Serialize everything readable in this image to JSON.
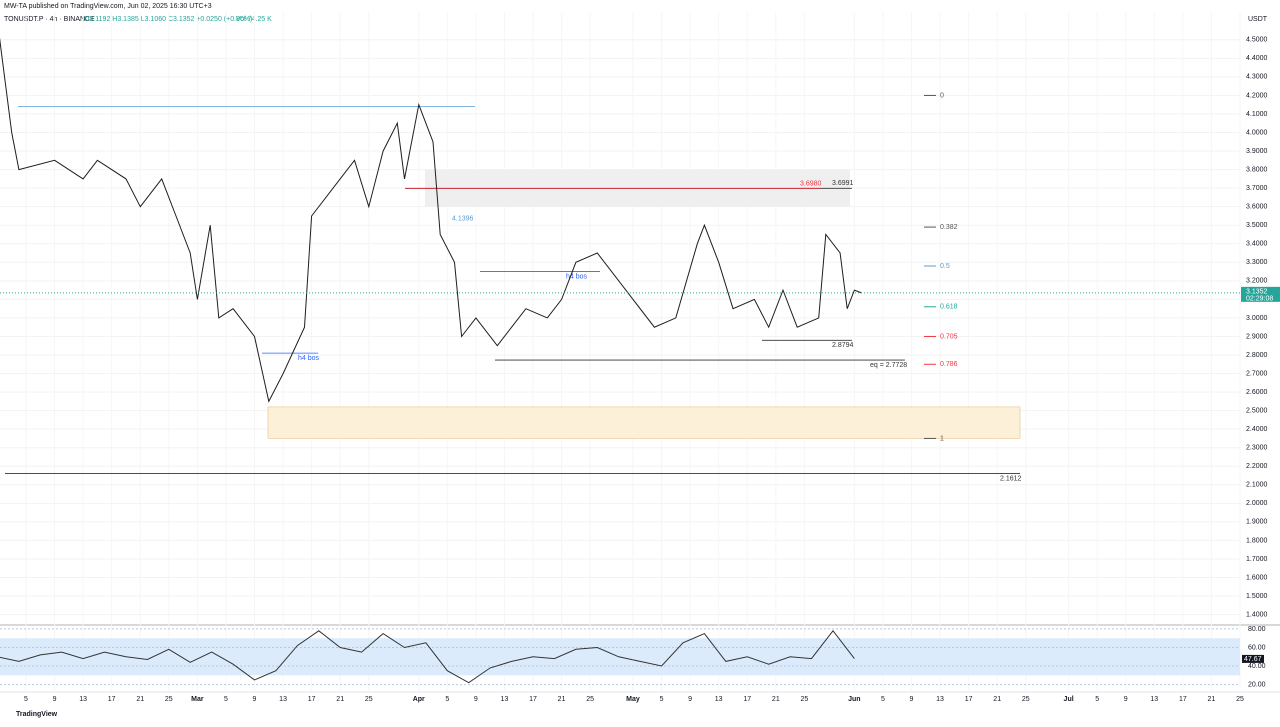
{
  "header": {
    "author": "MW-TA published on TradingView.com, Jun 02, 2025 16:30 UTC+3",
    "symbol": "TONUSDT.P · 4h · BINANCE",
    "ohlc": "O3.1192 H3.1385 L3.1060 C3.1352 +0.0250 (+0.80%)",
    "volume": "Vol 74.25 K"
  },
  "footer": {
    "brand": "TradingView"
  },
  "chart_data": [
    {
      "type": "line",
      "currency": "USDT",
      "color": "#1e1e1e",
      "x": [
        0,
        2,
        3,
        8,
        12,
        14,
        18,
        20,
        23,
        25,
        27,
        28,
        29.8,
        31,
        33,
        36,
        38,
        40,
        43,
        44,
        47,
        50,
        52,
        54,
        56,
        57,
        59,
        61,
        62,
        64,
        65,
        67,
        70,
        72,
        74,
        77,
        79,
        81,
        84,
        87,
        89,
        92,
        95,
        98,
        99,
        101,
        103,
        106,
        108,
        110,
        112,
        115,
        116,
        118,
        119,
        120,
        121
      ],
      "values": [
        4.6,
        4.0,
        3.8,
        3.85,
        3.75,
        3.85,
        3.75,
        3.6,
        3.75,
        3.55,
        3.35,
        3.1,
        3.5,
        3.0,
        3.05,
        2.9,
        2.55,
        2.7,
        2.95,
        3.55,
        3.7,
        3.85,
        3.6,
        3.9,
        4.05,
        3.75,
        4.15,
        3.95,
        3.45,
        3.3,
        2.9,
        3.0,
        2.85,
        2.95,
        3.05,
        3.0,
        3.1,
        3.3,
        3.35,
        3.2,
        3.1,
        2.95,
        3.0,
        3.4,
        3.5,
        3.3,
        3.05,
        3.1,
        2.95,
        3.15,
        2.95,
        3.0,
        3.45,
        3.35,
        3.05,
        3.15,
        3.1352
      ],
      "xlim": [
        0.36,
        174.0
      ],
      "ylim": [
        1.36,
        4.65
      ],
      "yticks": [
        {
          "value": 1.4,
          "label": "1.4000"
        },
        {
          "value": 1.5,
          "label": "1.5000"
        },
        {
          "value": 1.6,
          "label": "1.6000"
        },
        {
          "value": 1.7,
          "label": "1.7000"
        },
        {
          "value": 1.8,
          "label": "1.8000"
        },
        {
          "value": 1.9,
          "label": "1.9000"
        },
        {
          "value": 2.0,
          "label": "2.0000"
        },
        {
          "value": 2.1,
          "label": "2.1000"
        },
        {
          "value": 2.2,
          "label": "2.2000"
        },
        {
          "value": 2.3,
          "label": "2.3000"
        },
        {
          "value": 2.4,
          "label": "2.4000"
        },
        {
          "value": 2.5,
          "label": "2.5000"
        },
        {
          "value": 2.6,
          "label": "2.6000"
        },
        {
          "value": 2.7,
          "label": "2.7000"
        },
        {
          "value": 2.8,
          "label": "2.8000"
        },
        {
          "value": 2.9,
          "label": "2.9000"
        },
        {
          "value": 3.0,
          "label": "3.0000"
        },
        {
          "value": 3.1,
          "label": "3.1000"
        },
        {
          "value": 3.2,
          "label": "3.2000"
        },
        {
          "value": 3.3,
          "label": "3.3000"
        },
        {
          "value": 3.4,
          "label": "3.4000"
        },
        {
          "value": 3.5,
          "label": "3.5000"
        },
        {
          "value": 3.6,
          "label": "3.6000"
        },
        {
          "value": 3.7,
          "label": "3.7000"
        },
        {
          "value": 3.8,
          "label": "3.8000"
        },
        {
          "value": 3.9,
          "label": "3.9000"
        },
        {
          "value": 4.0,
          "label": "4.0000"
        },
        {
          "value": 4.1,
          "label": "4.1000"
        },
        {
          "value": 4.2,
          "label": "4.2000"
        },
        {
          "value": 4.3,
          "label": "4.3000"
        },
        {
          "value": 4.4,
          "label": "4.4000"
        },
        {
          "value": 4.5,
          "label": "4.5000"
        }
      ],
      "xticks": [
        {
          "value": 4,
          "label": "5"
        },
        {
          "value": 8,
          "label": "9"
        },
        {
          "value": 12,
          "label": "13"
        },
        {
          "value": 16,
          "label": "17"
        },
        {
          "value": 20,
          "label": "21"
        },
        {
          "value": 24,
          "label": "25"
        },
        {
          "value": 28,
          "label": "Mar"
        },
        {
          "value": 32,
          "label": "5"
        },
        {
          "value": 36,
          "label": "9"
        },
        {
          "value": 40,
          "label": "13"
        },
        {
          "value": 44,
          "label": "17"
        },
        {
          "value": 48,
          "label": "21"
        },
        {
          "value": 52,
          "label": "25"
        },
        {
          "value": 59,
          "label": "Apr"
        },
        {
          "value": 63,
          "label": "5"
        },
        {
          "value": 67,
          "label": "9"
        },
        {
          "value": 71,
          "label": "13"
        },
        {
          "value": 75,
          "label": "17"
        },
        {
          "value": 79,
          "label": "21"
        },
        {
          "value": 83,
          "label": "25"
        },
        {
          "value": 89,
          "label": "May"
        },
        {
          "value": 93,
          "label": "5"
        },
        {
          "value": 97,
          "label": "9"
        },
        {
          "value": 101,
          "label": "13"
        },
        {
          "value": 105,
          "label": "17"
        },
        {
          "value": 109,
          "label": "21"
        },
        {
          "value": 113,
          "label": "25"
        },
        {
          "value": 120,
          "label": "Jun"
        },
        {
          "value": 124,
          "label": "5"
        },
        {
          "value": 128,
          "label": "9"
        },
        {
          "value": 132,
          "label": "13"
        },
        {
          "value": 136,
          "label": "17"
        },
        {
          "value": 140,
          "label": "21"
        },
        {
          "value": 144,
          "label": "25"
        },
        {
          "value": 150,
          "label": "Jul"
        },
        {
          "value": 154,
          "label": "5"
        },
        {
          "value": 158,
          "label": "9"
        },
        {
          "value": 162,
          "label": "13"
        },
        {
          "value": 166,
          "label": "17"
        },
        {
          "value": 170,
          "label": "21"
        },
        {
          "value": 174,
          "label": "25"
        }
      ],
      "last": {
        "value": 3.1352,
        "label": "3.1352",
        "countdown": "02:29:08",
        "color": "#26a69a"
      },
      "annotations": [
        {
          "text": "4.1396",
          "price": 4.1396,
          "color": "#5b9bd5"
        },
        {
          "text": "3.6991",
          "price": 3.6991,
          "color": "#333333"
        },
        {
          "text": "3.6980",
          "price": 3.698,
          "color": "#f23645"
        },
        {
          "text": "2.8794",
          "price": 2.8794,
          "color": "#333333"
        },
        {
          "text": "eq = 2.7728",
          "price": 2.7728,
          "color": "#333333"
        },
        {
          "text": "2.1612",
          "price": 2.1612,
          "color": "#333333"
        },
        {
          "text": "h4 bos",
          "price": 2.81,
          "color": "#2962ff"
        },
        {
          "text": "h4 bos",
          "price": 3.25,
          "color": "#2962ff"
        }
      ],
      "fib": [
        {
          "text": "0",
          "price": 4.2,
          "color": "#555555"
        },
        {
          "text": "0.382",
          "price": 3.49,
          "color": "#555555"
        },
        {
          "text": "0.5",
          "price": 3.28,
          "color": "#5b9bd5"
        },
        {
          "text": "0.618",
          "price": 3.06,
          "color": "#26a69a"
        },
        {
          "text": "0.705",
          "price": 2.9,
          "color": "#f23645"
        },
        {
          "text": "0.786",
          "price": 2.75,
          "color": "#f23645"
        },
        {
          "text": "1",
          "price": 2.35,
          "color": "#555555"
        }
      ],
      "zones": [
        {
          "from": 3.6,
          "to": 3.8,
          "color": "#efefef"
        },
        {
          "from": 2.35,
          "to": 2.52,
          "color": "#fdf0d8"
        }
      ]
    },
    {
      "type": "line",
      "color": "#333333",
      "x": [
        0,
        3,
        6,
        9,
        12,
        15,
        18,
        21,
        24,
        27,
        30,
        33,
        36,
        39,
        42,
        45,
        48,
        51,
        54,
        57,
        60,
        63,
        66,
        69,
        72,
        75,
        78,
        81,
        84,
        87,
        90,
        93,
        96,
        99,
        102,
        105,
        108,
        111,
        114,
        117,
        120
      ],
      "values": [
        50,
        45,
        52,
        55,
        48,
        55,
        50,
        47,
        58,
        44,
        55,
        42,
        25,
        35,
        62,
        78,
        60,
        55,
        75,
        60,
        65,
        35,
        22,
        38,
        45,
        50,
        48,
        58,
        60,
        50,
        45,
        40,
        65,
        75,
        45,
        50,
        42,
        50,
        48,
        78,
        48
      ],
      "xlim": [
        0.36,
        174.0
      ],
      "ylim": [
        12,
        81
      ],
      "band": [
        30,
        70
      ],
      "yticks": [
        {
          "value": 80,
          "label": "80.00"
        },
        {
          "value": 60,
          "label": "60.00"
        },
        {
          "value": 40,
          "label": "40.00"
        },
        {
          "value": 20,
          "label": "20.00"
        }
      ],
      "last": {
        "value": 47.67,
        "label": "47.67"
      }
    }
  ]
}
